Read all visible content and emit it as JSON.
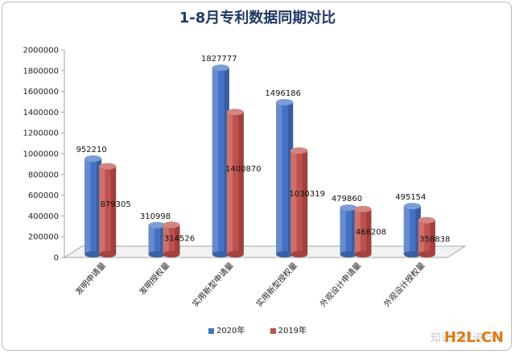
{
  "chart_data": {
    "type": "bar",
    "title": "1-8月专利数据同期对比",
    "categories": [
      "发明申请量",
      "发明授权量",
      "实用新型申请量",
      "实用新型授权量",
      "外观设计申请量",
      "外观设计授权量"
    ],
    "series": [
      {
        "name": "2020年",
        "color": "#4472c4",
        "values": [
          952210,
          310998,
          1827777,
          1496186,
          479860,
          495154
        ]
      },
      {
        "name": "2019年",
        "color": "#c0504d",
        "values": [
          879305,
          314526,
          1400870,
          1030319,
          466208,
          358838
        ]
      }
    ],
    "ylim": [
      0,
      2000000
    ],
    "yticks": [
      0,
      200000,
      400000,
      600000,
      800000,
      1000000,
      1200000,
      1400000,
      1600000,
      1800000,
      2000000
    ],
    "grid": false,
    "legend_position": "bottom"
  },
  "watermark": "知识产权进行时",
  "brand": "H2L.CN"
}
